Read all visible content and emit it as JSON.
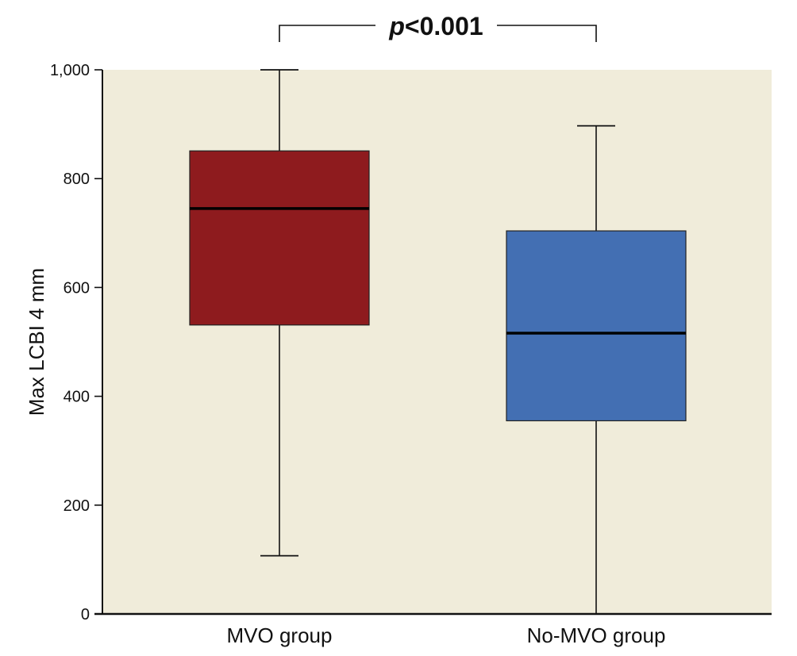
{
  "chart_data": {
    "type": "boxplot",
    "ylabel": "Max LCBI 4 mm",
    "xlabel": "",
    "ylim": [
      0,
      1000
    ],
    "yticks": [
      0,
      200,
      400,
      600,
      800,
      1000
    ],
    "ytick_labels": [
      "0",
      "200",
      "400",
      "600",
      "800",
      "1,000"
    ],
    "grid": false,
    "background": "#f0ecda",
    "groups": [
      {
        "name": "MVO group",
        "whisker_low": 107,
        "q1": 531,
        "median": 745,
        "q3": 851,
        "whisker_high": 1000,
        "color": "#8e1b1e"
      },
      {
        "name": "No-MVO group",
        "whisker_low": 0,
        "q1": 355,
        "median": 516,
        "q3": 704,
        "whisker_high": 897,
        "color": "#436fb3"
      }
    ],
    "annotation": {
      "italic": "p",
      "rest": "<0.001"
    }
  }
}
